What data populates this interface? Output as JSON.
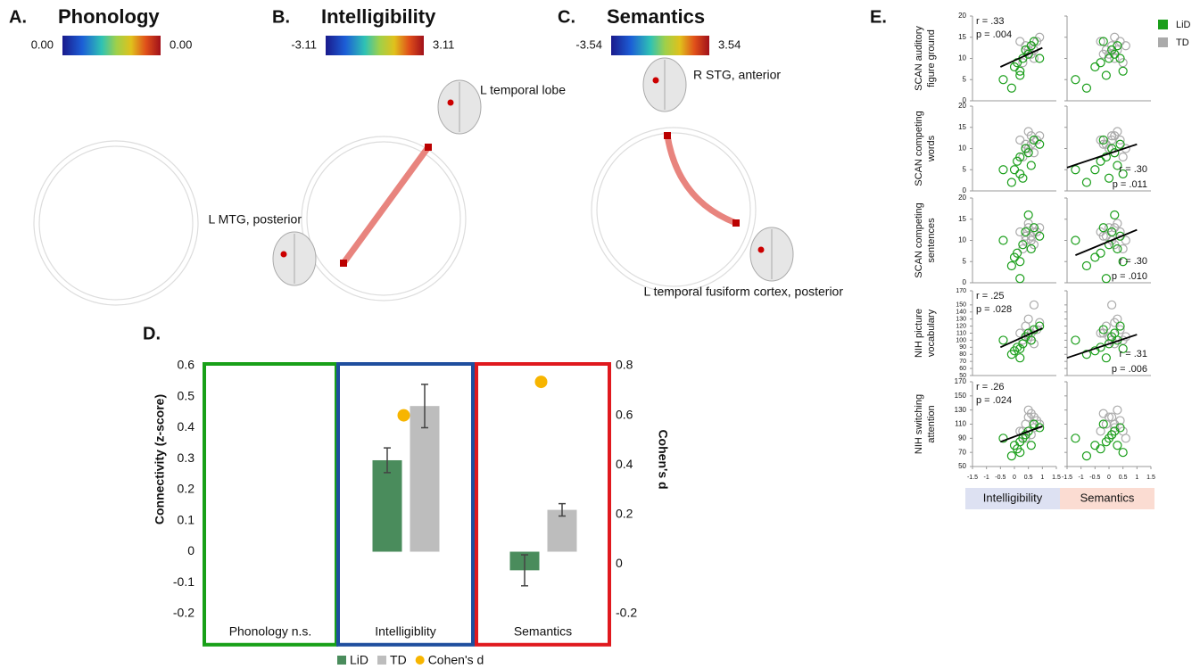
{
  "networks": [
    {
      "panel_label": "A.",
      "title": "Phonology",
      "colorbar": [
        "0.00",
        "0.00"
      ],
      "regions": []
    },
    {
      "panel_label": "B.",
      "title": "Intelligibility",
      "colorbar": [
        "-3.11",
        "3.11"
      ],
      "regions": [
        "L temporal lobe",
        "L MTG, posterior"
      ]
    },
    {
      "panel_label": "C.",
      "title": "Semantics",
      "colorbar": [
        "-3.54",
        "3.54"
      ],
      "regions": [
        "R STG, anterior",
        "L temporal fusiform cortex, posterior"
      ]
    }
  ],
  "chart_data": [
    {
      "type": "bar",
      "panel_label": "D.",
      "categories": [
        "Phonology n.s.",
        "Intelligiblity",
        "Semantics"
      ],
      "panel_colors": [
        "#18a018",
        "#1f4e9e",
        "#e0191e"
      ],
      "series": [
        {
          "name": "LiD",
          "color": "#4a8c5c",
          "values": [
            null,
            0.295,
            -0.06
          ],
          "errors": [
            null,
            0.04,
            0.05
          ]
        },
        {
          "name": "TD",
          "color": "#bdbdbd",
          "values": [
            null,
            0.47,
            0.135
          ],
          "errors": [
            null,
            0.07,
            0.02
          ]
        },
        {
          "name": "Cohen's d",
          "color": "#f7b500",
          "axis": "y2",
          "values": [
            null,
            0.6,
            0.735
          ]
        }
      ],
      "ylabel": "Connectivity (z-score)",
      "y2label": "Cohen's d",
      "ylim": [
        -0.3,
        0.6
      ],
      "yticks": [
        -0.2,
        -0.1,
        0,
        0.1,
        0.2,
        0.3,
        0.4,
        0.5,
        0.6
      ],
      "y2lim": [
        -0.32,
        0.8
      ],
      "y2ticks": [
        -0.2,
        0,
        0.2,
        0.4,
        0.6,
        0.8
      ]
    },
    {
      "type": "scatter",
      "panel_label": "E.",
      "series": [
        {
          "name": "LiD",
          "color": "#1a9e1a"
        },
        {
          "name": "TD",
          "color": "#aaaaaa"
        }
      ],
      "xlim": [
        -1.5,
        1.5
      ],
      "xticks": [
        -1.5,
        -1,
        -0.5,
        0,
        0.5,
        1,
        1.5
      ],
      "columns": [
        {
          "name": "Intelligibility",
          "bg": "#dde1f2",
          "x": [
            [
              -0.4,
              -0.1,
              0,
              0.1,
              0.2,
              0.3,
              0.4,
              0.5,
              0.6,
              0.7,
              0.9,
              0.2
            ],
            [
              0.2,
              0.4,
              0.5,
              0.6,
              0.7,
              0.5,
              0.8,
              0.3,
              0.6,
              0.9,
              0.4,
              0.7
            ]
          ]
        },
        {
          "name": "Semantics",
          "bg": "#fbdcd2",
          "x": [
            [
              -1.2,
              -0.8,
              -0.5,
              -0.3,
              -0.1,
              0,
              0.1,
              0.2,
              0.3,
              -0.2,
              0.4,
              0.5
            ],
            [
              -0.3,
              -0.1,
              0,
              0.1,
              0.2,
              0.3,
              0.4,
              0.5,
              -0.2,
              0.2,
              0.6,
              0.1
            ]
          ]
        }
      ],
      "rows": [
        {
          "label": [
            "SCAN auditory",
            "figure ground"
          ],
          "ylim": [
            0,
            20
          ],
          "yticks": [
            0,
            5,
            10,
            15,
            20
          ],
          "y": [
            [
              5,
              3,
              8,
              9,
              6,
              10,
              12,
              11,
              13,
              14,
              10,
              7
            ],
            [
              14,
              12,
              11,
              13,
              10,
              12,
              14,
              9,
              11,
              15,
              13,
              12
            ]
          ],
          "fits": [
            {
              "x": [
                -0.5,
                1
              ],
              "y": [
                8,
                12.5
              ]
            },
            null
          ],
          "stats": [
            [
              "r = .33",
              "p = .004"
            ],
            null
          ]
        },
        {
          "label": [
            "SCAN competing",
            "words"
          ],
          "ylim": [
            0,
            20
          ],
          "yticks": [
            0,
            5,
            10,
            15,
            20
          ],
          "y": [
            [
              5,
              2,
              5,
              7,
              8,
              3,
              10,
              9,
              6,
              12,
              11,
              4
            ],
            [
              12,
              11,
              10,
              13,
              9,
              14,
              12,
              8,
              11,
              13,
              10,
              12
            ]
          ],
          "fits": [
            null,
            {
              "x": [
                -1.5,
                1
              ],
              "y": [
                5.5,
                11
              ]
            }
          ],
          "stats": [
            null,
            [
              "r = .30",
              "p = .011"
            ]
          ]
        },
        {
          "label": [
            "SCAN competing",
            "sentences"
          ],
          "ylim": [
            0,
            20
          ],
          "yticks": [
            0,
            5,
            10,
            15,
            20
          ],
          "y": [
            [
              10,
              4,
              6,
              7,
              1,
              9,
              12,
              16,
              8,
              13,
              11,
              5
            ],
            [
              12,
              11,
              13,
              10,
              9,
              14,
              12,
              8,
              11,
              13,
              10,
              12
            ]
          ],
          "fits": [
            null,
            {
              "x": [
                -1.2,
                1
              ],
              "y": [
                6.5,
                12.5
              ]
            }
          ],
          "stats": [
            null,
            [
              "r = .30",
              "p = .010"
            ]
          ]
        },
        {
          "label": [
            "NIH picture",
            "vocabulary"
          ],
          "ylim": [
            50,
            170
          ],
          "yticks": [
            50,
            60,
            70,
            80,
            90,
            100,
            110,
            120,
            130,
            140,
            150,
            170
          ],
          "y": [
            [
              100,
              80,
              85,
              90,
              75,
              95,
              105,
              110,
              100,
              115,
              120,
              88
            ],
            [
              110,
              120,
              105,
              100,
              95,
              130,
              115,
              100,
              110,
              125,
              105,
              150
            ]
          ],
          "fits": [
            {
              "x": [
                -0.5,
                1
              ],
              "y": [
                90,
                117
              ]
            },
            {
              "x": [
                -1.5,
                1
              ],
              "y": [
                75,
                108
              ]
            }
          ],
          "stats": [
            [
              "r = .25",
              "p = .028"
            ],
            [
              "r = .31",
              "p = .006"
            ]
          ]
        },
        {
          "label": [
            "NIH switching",
            "attention"
          ],
          "ylim": [
            50,
            170
          ],
          "yticks": [
            50,
            70,
            90,
            110,
            130,
            150,
            170
          ],
          "y": [
            [
              90,
              65,
              80,
              75,
              85,
              90,
              95,
              100,
              80,
              110,
              105,
              70
            ],
            [
              100,
              110,
              120,
              95,
              105,
              130,
              115,
              100,
              125,
              110,
              90,
              120
            ]
          ],
          "fits": [
            {
              "x": [
                -0.5,
                1
              ],
              "y": [
                85,
                107
              ]
            },
            null
          ],
          "stats": [
            [
              "r = .26",
              "p = .024"
            ],
            null
          ]
        }
      ]
    }
  ]
}
